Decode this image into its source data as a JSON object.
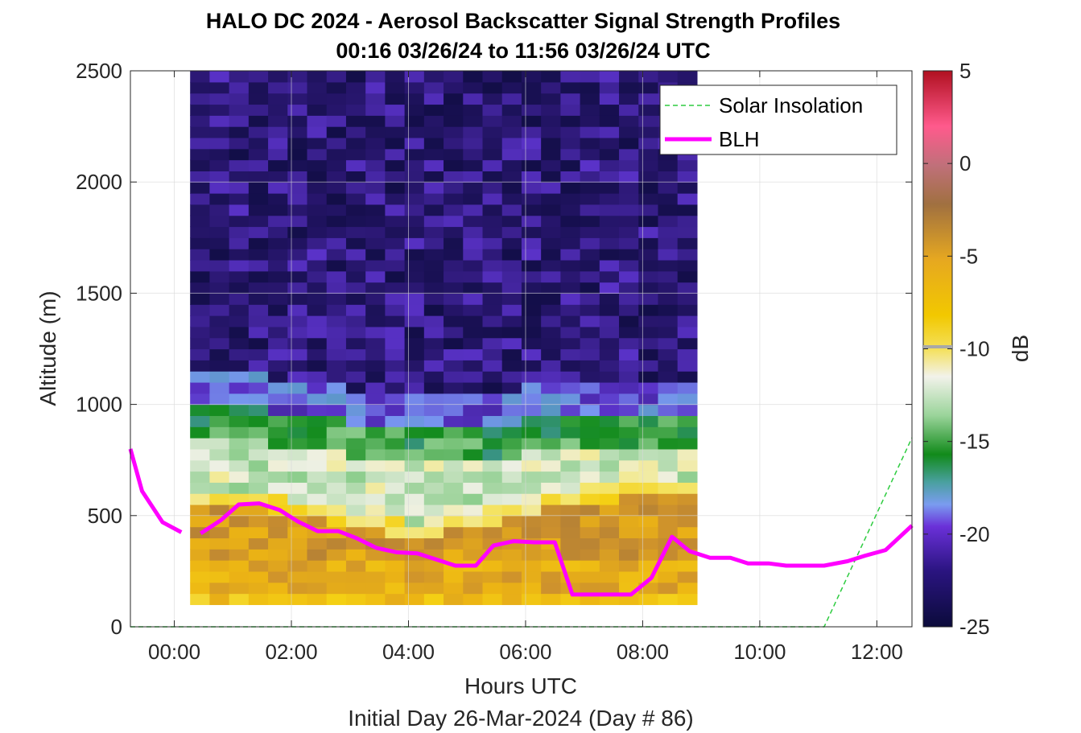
{
  "chart_data": {
    "type": "heatmap",
    "title": "HALO DC 2024 - Aerosol Backscatter Signal Strength Profiles",
    "subtitle": "00:16 03/26/24 to 11:56 03/26/24  UTC",
    "xlabel": "Hours UTC",
    "xlabel2": "Initial Day 26-Mar-2024 (Day # 86)",
    "ylabel": "Altitude (m)",
    "xlim": [
      -0.75,
      12.6
    ],
    "ylim": [
      0,
      2500
    ],
    "x_ticks": [
      0,
      2,
      4,
      6,
      8,
      10,
      12
    ],
    "x_tick_labels": [
      "00:00",
      "02:00",
      "04:00",
      "06:00",
      "08:00",
      "10:00",
      "12:00"
    ],
    "y_ticks": [
      0,
      500,
      1000,
      1500,
      2000,
      2500
    ],
    "y_tick_labels": [
      "0",
      "500",
      "1000",
      "1500",
      "2000",
      "2500"
    ],
    "colorbar": {
      "label": "dB",
      "range": [
        -25,
        5
      ],
      "ticks": [
        5,
        0,
        -5,
        -10,
        -15,
        -20,
        -25
      ],
      "tick_labels": [
        "5",
        "0",
        "-5",
        "-10",
        "-15",
        "-20",
        "-25"
      ]
    },
    "grid": true,
    "legend_position": "top-right",
    "heatmap": {
      "x_start": 0.27,
      "x_step": 0.333,
      "columns": 26,
      "y_start": 100,
      "y_step": 50,
      "rows": 48,
      "approx_layers": [
        {
          "from_m": 100,
          "to_m": 150,
          "dB": -8
        },
        {
          "from_m": 150,
          "to_m": 600,
          "dB": -5
        },
        {
          "from_m": 600,
          "to_m": 800,
          "dB": -11
        },
        {
          "from_m": 800,
          "to_m": 1000,
          "dB": -16
        },
        {
          "from_m": 1000,
          "to_m": 1100,
          "dB": -20
        },
        {
          "from_m": 1100,
          "to_m": 2500,
          "dB": -23
        }
      ]
    },
    "series": [
      {
        "name": "Solar Insolation",
        "color": "#2ecc40",
        "style": "dashed",
        "x": [
          -0.75,
          11.1,
          12.6
        ],
        "y": [
          0,
          0,
          850
        ]
      },
      {
        "name": "BLH",
        "color": "#ff00ff",
        "style": "solid",
        "segments": [
          {
            "x": [
              -0.75,
              -0.55,
              -0.2,
              0.12
            ],
            "y": [
              800,
              610,
              470,
              425
            ]
          },
          {
            "x": [
              0.45,
              0.8,
              1.1,
              1.45,
              1.8,
              2.1,
              2.45,
              2.8,
              3.1,
              3.45,
              3.8,
              4.15,
              4.45,
              4.8,
              5.15,
              5.45,
              5.8,
              6.15,
              6.5,
              6.8,
              7.15,
              7.45,
              7.8,
              8.15,
              8.5,
              8.8,
              9.15,
              9.5,
              9.8,
              10.15,
              10.45,
              10.8,
              11.1,
              11.5,
              11.8,
              12.15,
              12.6
            ]
          },
          {
            "x": [],
            "y": []
          }
        ],
        "blh_y": [
          420,
          480,
          550,
          555,
          525,
          475,
          430,
          430,
          400,
          355,
          335,
          330,
          305,
          275,
          275,
          365,
          385,
          380,
          380,
          145,
          145,
          145,
          145,
          220,
          405,
          340,
          310,
          310,
          285,
          285,
          275,
          275,
          275,
          295,
          320,
          345,
          455
        ]
      }
    ]
  }
}
